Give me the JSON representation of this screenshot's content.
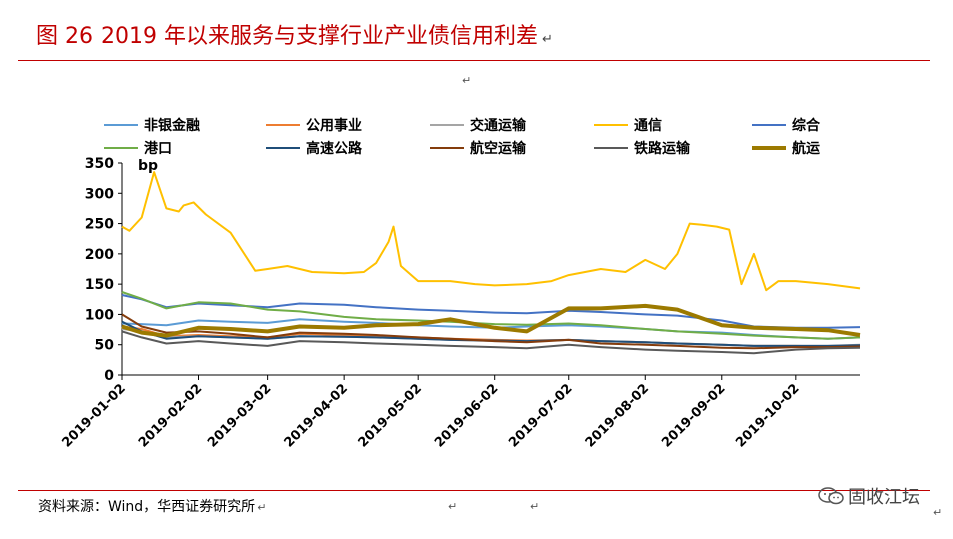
{
  "header": {
    "figure_no": "图 26",
    "title": "2019 年以来服务与支撑行业产业债信用利差",
    "para_mark": "↵"
  },
  "footer": {
    "source": "资料来源：Wind，华西证券研究所",
    "para_mark": "↵",
    "watermark": "固收江坛"
  },
  "colors": {
    "accent": "#c00000"
  },
  "chart_data": {
    "type": "line",
    "unit_label": "bp",
    "ylim": [
      0,
      350
    ],
    "yticks": [
      0,
      50,
      100,
      150,
      200,
      250,
      300,
      350
    ],
    "xlim": [
      "2019-01-02",
      "2019-10-28"
    ],
    "xticks": [
      "2019-01-02",
      "2019-02-02",
      "2019-03-02",
      "2019-04-02",
      "2019-05-02",
      "2019-06-02",
      "2019-07-02",
      "2019-08-02",
      "2019-09-02",
      "2019-10-02"
    ],
    "grid": false,
    "legend_position": "top",
    "series": [
      {
        "name": "非银金融",
        "color": "#5b9bd5",
        "width": 2,
        "x": [
          "2019-01-02",
          "2019-01-10",
          "2019-01-20",
          "2019-02-02",
          "2019-02-15",
          "2019-03-02",
          "2019-03-15",
          "2019-04-02",
          "2019-04-15",
          "2019-05-02",
          "2019-05-15",
          "2019-06-02",
          "2019-06-15",
          "2019-07-02",
          "2019-07-15",
          "2019-08-02",
          "2019-08-15",
          "2019-09-02",
          "2019-09-15",
          "2019-10-02",
          "2019-10-15",
          "2019-10-28"
        ],
        "y": [
          85,
          84,
          82,
          90,
          88,
          86,
          92,
          88,
          86,
          82,
          80,
          78,
          80,
          82,
          80,
          76,
          72,
          70,
          66,
          62,
          60,
          62
        ]
      },
      {
        "name": "公用事业",
        "color": "#ed7d31",
        "width": 2,
        "x": [
          "2019-01-02",
          "2019-01-10",
          "2019-01-20",
          "2019-02-02",
          "2019-02-15",
          "2019-03-02",
          "2019-03-15",
          "2019-04-02",
          "2019-04-15",
          "2019-05-02",
          "2019-05-15",
          "2019-06-02",
          "2019-06-15",
          "2019-07-02",
          "2019-07-15",
          "2019-08-02",
          "2019-08-15",
          "2019-09-02",
          "2019-09-15",
          "2019-10-02",
          "2019-10-15",
          "2019-10-28"
        ],
        "y": [
          80,
          76,
          64,
          66,
          64,
          62,
          68,
          66,
          64,
          62,
          60,
          58,
          57,
          58,
          56,
          54,
          52,
          50,
          48,
          48,
          47,
          48
        ]
      },
      {
        "name": "交通运输",
        "color": "#a5a5a5",
        "width": 2,
        "x": [
          "2019-01-02",
          "2019-01-10",
          "2019-01-20",
          "2019-02-02",
          "2019-02-15",
          "2019-03-02",
          "2019-03-15",
          "2019-04-02",
          "2019-04-15",
          "2019-05-02",
          "2019-05-15",
          "2019-06-02",
          "2019-06-15",
          "2019-07-02",
          "2019-07-15",
          "2019-08-02",
          "2019-08-15",
          "2019-09-02",
          "2019-09-15",
          "2019-10-02",
          "2019-10-15",
          "2019-10-28"
        ],
        "y": [
          76,
          72,
          62,
          64,
          62,
          60,
          64,
          63,
          62,
          60,
          58,
          56,
          56,
          58,
          56,
          54,
          52,
          50,
          48,
          48,
          48,
          50
        ]
      },
      {
        "name": "通信",
        "color": "#ffc000",
        "width": 2,
        "x": [
          "2019-01-02",
          "2019-01-05",
          "2019-01-10",
          "2019-01-15",
          "2019-01-20",
          "2019-01-25",
          "2019-01-27",
          "2019-01-31",
          "2019-02-05",
          "2019-02-15",
          "2019-02-25",
          "2019-03-02",
          "2019-03-10",
          "2019-03-20",
          "2019-04-02",
          "2019-04-10",
          "2019-04-15",
          "2019-04-20",
          "2019-04-22",
          "2019-04-25",
          "2019-05-02",
          "2019-05-15",
          "2019-05-25",
          "2019-06-02",
          "2019-06-15",
          "2019-06-25",
          "2019-07-02",
          "2019-07-15",
          "2019-07-25",
          "2019-08-02",
          "2019-08-10",
          "2019-08-15",
          "2019-08-20",
          "2019-08-25",
          "2019-08-31",
          "2019-09-05",
          "2019-09-10",
          "2019-09-15",
          "2019-09-20",
          "2019-09-25",
          "2019-10-02",
          "2019-10-15",
          "2019-10-28"
        ],
        "y": [
          245,
          238,
          260,
          335,
          275,
          270,
          280,
          285,
          265,
          235,
          172,
          175,
          180,
          170,
          168,
          170,
          185,
          220,
          245,
          180,
          155,
          155,
          150,
          148,
          150,
          155,
          165,
          175,
          170,
          190,
          175,
          200,
          250,
          248,
          245,
          240,
          150,
          200,
          140,
          155,
          155,
          150,
          143
        ]
      },
      {
        "name": "综合",
        "color": "#4472c4",
        "width": 2,
        "x": [
          "2019-01-02",
          "2019-01-10",
          "2019-01-20",
          "2019-02-02",
          "2019-02-15",
          "2019-03-02",
          "2019-03-15",
          "2019-04-02",
          "2019-04-15",
          "2019-05-02",
          "2019-05-15",
          "2019-06-02",
          "2019-06-15",
          "2019-07-02",
          "2019-07-15",
          "2019-08-02",
          "2019-08-15",
          "2019-09-02",
          "2019-09-15",
          "2019-10-02",
          "2019-10-15",
          "2019-10-28"
        ],
        "y": [
          132,
          125,
          112,
          118,
          115,
          112,
          118,
          116,
          112,
          108,
          106,
          103,
          102,
          106,
          104,
          100,
          98,
          90,
          80,
          78,
          78,
          79
        ]
      },
      {
        "name": "港口",
        "color": "#70ad47",
        "width": 2,
        "x": [
          "2019-01-02",
          "2019-01-10",
          "2019-01-20",
          "2019-02-02",
          "2019-02-15",
          "2019-03-02",
          "2019-03-15",
          "2019-04-02",
          "2019-04-15",
          "2019-05-02",
          "2019-05-15",
          "2019-06-02",
          "2019-06-15",
          "2019-07-02",
          "2019-07-15",
          "2019-08-02",
          "2019-08-15",
          "2019-09-02",
          "2019-09-15",
          "2019-10-02",
          "2019-10-15",
          "2019-10-28"
        ],
        "y": [
          137,
          126,
          110,
          120,
          118,
          108,
          105,
          96,
          92,
          90,
          88,
          84,
          83,
          85,
          82,
          76,
          72,
          68,
          65,
          62,
          60,
          62
        ]
      },
      {
        "name": "高速公路",
        "color": "#1f4e79",
        "width": 2,
        "x": [
          "2019-01-02",
          "2019-01-10",
          "2019-01-20",
          "2019-02-02",
          "2019-02-15",
          "2019-03-02",
          "2019-03-15",
          "2019-04-02",
          "2019-04-15",
          "2019-05-02",
          "2019-05-15",
          "2019-06-02",
          "2019-06-15",
          "2019-07-02",
          "2019-07-15",
          "2019-08-02",
          "2019-08-15",
          "2019-09-02",
          "2019-09-15",
          "2019-10-02",
          "2019-10-15",
          "2019-10-28"
        ],
        "y": [
          88,
          72,
          60,
          64,
          62,
          60,
          64,
          63,
          62,
          60,
          58,
          57,
          56,
          58,
          56,
          54,
          52,
          50,
          48,
          48,
          48,
          49
        ]
      },
      {
        "name": "航空运输",
        "color": "#843c0c",
        "width": 2,
        "x": [
          "2019-01-02",
          "2019-01-10",
          "2019-01-20",
          "2019-02-02",
          "2019-02-15",
          "2019-03-02",
          "2019-03-15",
          "2019-04-02",
          "2019-04-15",
          "2019-05-02",
          "2019-05-15",
          "2019-06-02",
          "2019-06-15",
          "2019-07-02",
          "2019-07-15",
          "2019-08-02",
          "2019-08-15",
          "2019-09-02",
          "2019-09-15",
          "2019-10-02",
          "2019-10-15",
          "2019-10-28"
        ],
        "y": [
          100,
          80,
          70,
          72,
          68,
          62,
          70,
          68,
          66,
          62,
          60,
          56,
          54,
          58,
          52,
          50,
          48,
          45,
          44,
          46,
          46,
          47
        ]
      },
      {
        "name": "铁路运输",
        "color": "#595959",
        "width": 2,
        "x": [
          "2019-01-02",
          "2019-01-10",
          "2019-01-20",
          "2019-02-02",
          "2019-02-15",
          "2019-03-02",
          "2019-03-15",
          "2019-04-02",
          "2019-04-15",
          "2019-05-02",
          "2019-05-15",
          "2019-06-02",
          "2019-06-15",
          "2019-07-02",
          "2019-07-15",
          "2019-08-02",
          "2019-08-15",
          "2019-09-02",
          "2019-09-15",
          "2019-10-02",
          "2019-10-15",
          "2019-10-28"
        ],
        "y": [
          72,
          62,
          52,
          56,
          52,
          48,
          56,
          54,
          52,
          50,
          48,
          46,
          44,
          50,
          46,
          42,
          40,
          38,
          36,
          42,
          44,
          45
        ]
      },
      {
        "name": "航运",
        "color": "#9c7a00",
        "width": 4,
        "x": [
          "2019-01-02",
          "2019-01-10",
          "2019-01-20",
          "2019-02-02",
          "2019-02-15",
          "2019-03-02",
          "2019-03-15",
          "2019-04-02",
          "2019-04-15",
          "2019-05-02",
          "2019-05-15",
          "2019-06-02",
          "2019-06-15",
          "2019-07-02",
          "2019-07-15",
          "2019-08-02",
          "2019-08-15",
          "2019-09-02",
          "2019-09-15",
          "2019-10-02",
          "2019-10-15",
          "2019-10-28"
        ],
        "y": [
          80,
          70,
          65,
          78,
          76,
          72,
          80,
          78,
          82,
          84,
          92,
          78,
          72,
          110,
          110,
          114,
          108,
          82,
          78,
          76,
          74,
          66
        ]
      }
    ]
  }
}
